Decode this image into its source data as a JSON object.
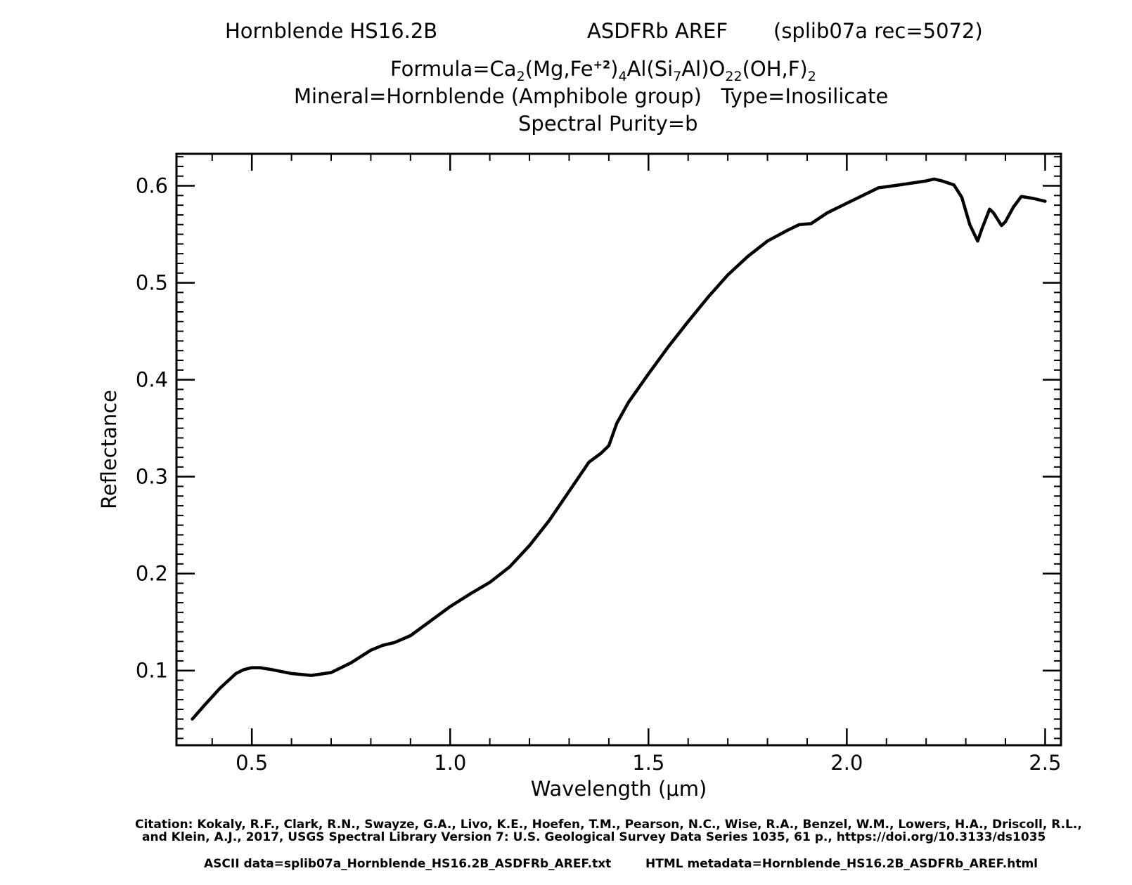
{
  "header": {
    "sample": "Hornblende HS16.2B",
    "instrument": "ASDFRb AREF",
    "record": "(splib07a rec=5072)",
    "formula_prefix": "Formula=Ca",
    "formula_sub1": "2",
    "formula_part2": "(Mg,Fe",
    "formula_sup": "+2",
    "formula_part3": ")",
    "formula_sub2": "4",
    "formula_part4": "Al(Si",
    "formula_sub3": "7",
    "formula_part5": "Al)O",
    "formula_sub4": "22",
    "formula_part6": "(OH,F)",
    "formula_sub5": "2",
    "mineral_line": "Mineral=Hornblende (Amphibole group)   Type=Inosilicate",
    "purity_line": "Spectral Purity=b"
  },
  "footer": {
    "citation_line1": "Citation: Kokaly, R.F., Clark, R.N., Swayze, G.A., Livo, K.E., Hoefen, T.M., Pearson, N.C., Wise, R.A., Benzel, W.M., Lowers, H.A., Driscoll, R.L.,",
    "citation_line2": "and Klein, A.J., 2017, USGS Spectral Library Version 7: U.S. Geological Survey Data Series 1035, 61 p., https://doi.org/10.3133/ds1035",
    "ascii_data": "ASCII data=splib07a_Hornblende_HS16.2B_ASDFRb_AREF.txt",
    "html_metadata": "HTML metadata=Hornblende_HS16.2B_ASDFRb_AREF.html"
  },
  "chart_data": {
    "type": "line",
    "xlabel": "Wavelength (μm)",
    "ylabel": "Reflectance",
    "xlim": [
      0.31,
      2.54
    ],
    "ylim": [
      0.023,
      0.633
    ],
    "x_ticks": [
      "0.5",
      "1.0",
      "1.5",
      "2.0",
      "2.5"
    ],
    "x_tick_values": [
      0.5,
      1.0,
      1.5,
      2.0,
      2.5
    ],
    "y_ticks": [
      "0.1",
      "0.2",
      "0.3",
      "0.4",
      "0.5",
      "0.6"
    ],
    "y_tick_values": [
      0.1,
      0.2,
      0.3,
      0.4,
      0.5,
      0.6
    ],
    "grid": false,
    "line_color": "#000000",
    "series": [
      {
        "x": [
          0.35,
          0.38,
          0.42,
          0.46,
          0.48,
          0.5,
          0.52,
          0.55,
          0.6,
          0.65,
          0.7,
          0.75,
          0.8,
          0.83,
          0.86,
          0.9,
          0.95,
          1.0,
          1.05,
          1.1,
          1.15,
          1.2,
          1.25,
          1.3,
          1.35,
          1.38,
          1.4,
          1.42,
          1.45,
          1.5,
          1.55,
          1.6,
          1.65,
          1.7,
          1.75,
          1.8,
          1.85,
          1.88,
          1.91,
          1.95,
          2.0,
          2.05,
          2.08,
          2.1,
          2.15,
          2.2,
          2.22,
          2.24,
          2.27,
          2.29,
          2.31,
          2.33,
          2.34,
          2.36,
          2.37,
          2.39,
          2.4,
          2.42,
          2.44,
          2.47,
          2.5
        ],
        "y": [
          0.05,
          0.064,
          0.082,
          0.097,
          0.101,
          0.103,
          0.103,
          0.101,
          0.097,
          0.095,
          0.098,
          0.108,
          0.121,
          0.126,
          0.129,
          0.136,
          0.151,
          0.166,
          0.179,
          0.191,
          0.207,
          0.229,
          0.255,
          0.285,
          0.315,
          0.324,
          0.332,
          0.355,
          0.377,
          0.406,
          0.434,
          0.46,
          0.485,
          0.508,
          0.527,
          0.543,
          0.554,
          0.56,
          0.561,
          0.572,
          0.582,
          0.592,
          0.598,
          0.599,
          0.602,
          0.605,
          0.607,
          0.605,
          0.601,
          0.588,
          0.56,
          0.543,
          0.555,
          0.576,
          0.572,
          0.559,
          0.563,
          0.578,
          0.589,
          0.587,
          0.584
        ]
      }
    ]
  }
}
